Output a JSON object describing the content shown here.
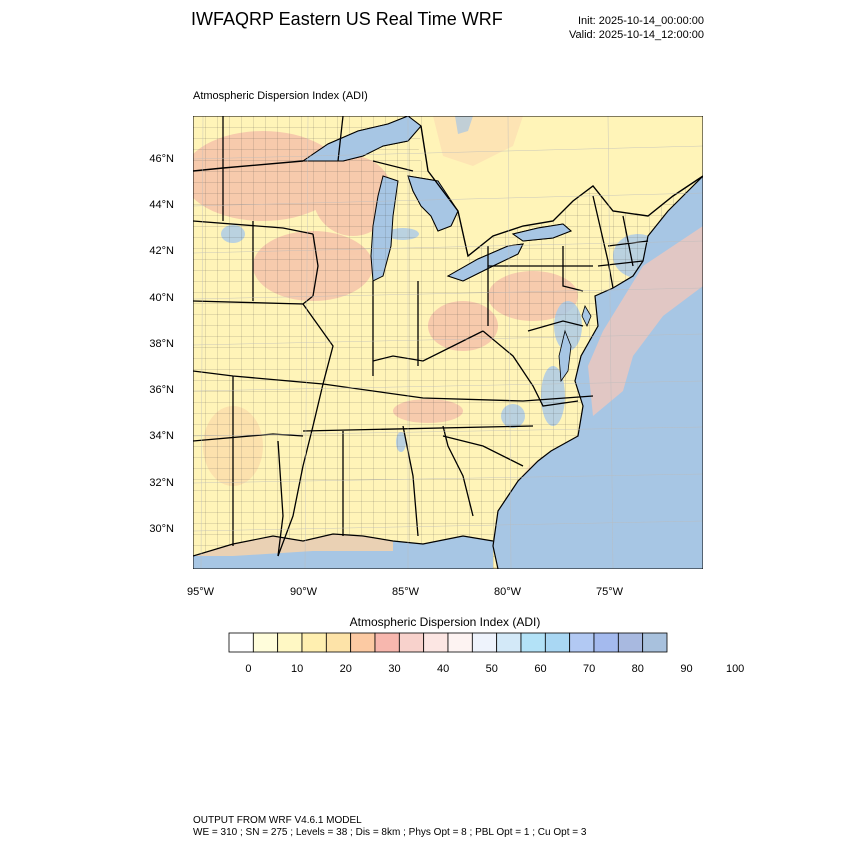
{
  "header": {
    "title": "IWFAQRP Eastern US Real Time WRF",
    "init": "Init: 2025-10-14_00:00:00",
    "valid": "Valid: 2025-10-14_12:00:00"
  },
  "map": {
    "subtitle": "Atmospheric Dispersion Index   (ADI)",
    "lat_labels": [
      "46°N",
      "44°N",
      "42°N",
      "40°N",
      "38°N",
      "36°N",
      "34°N",
      "32°N",
      "30°N"
    ],
    "lon_labels": [
      "95°W",
      "90°W",
      "85°W",
      "80°W",
      "75°W"
    ],
    "colors": {
      "land_base": "#fff4b8",
      "water": "#a7c6e4",
      "high_adi": "#f4b9a8",
      "low_adi": "#aecbe6"
    }
  },
  "colorbar": {
    "title": "Atmospheric Dispersion Index  (ADI)",
    "ticks": [
      "0",
      "10",
      "20",
      "30",
      "40",
      "50",
      "60",
      "70",
      "80",
      "90",
      "100"
    ],
    "colors": [
      "#ffffff",
      "#fffddb",
      "#fff8c4",
      "#ffefb0",
      "#fde3a8",
      "#fccaa3",
      "#f7b7ae",
      "#f8d2cc",
      "#fce6e3",
      "#fdf3f2",
      "#eef3fc",
      "#d3e9f8",
      "#b3e2f7",
      "#a9d7f3",
      "#b2c9f3",
      "#a4baee",
      "#a8b9e0",
      "#a8c1dd"
    ]
  },
  "footer": {
    "line1": "OUTPUT FROM WRF V4.6.1 MODEL",
    "line2": "WE = 310 ; SN = 275 ; Levels = 38 ; Dis = 8km ; Phys Opt = 8 ; PBL Opt = 1 ; Cu Opt = 3"
  }
}
